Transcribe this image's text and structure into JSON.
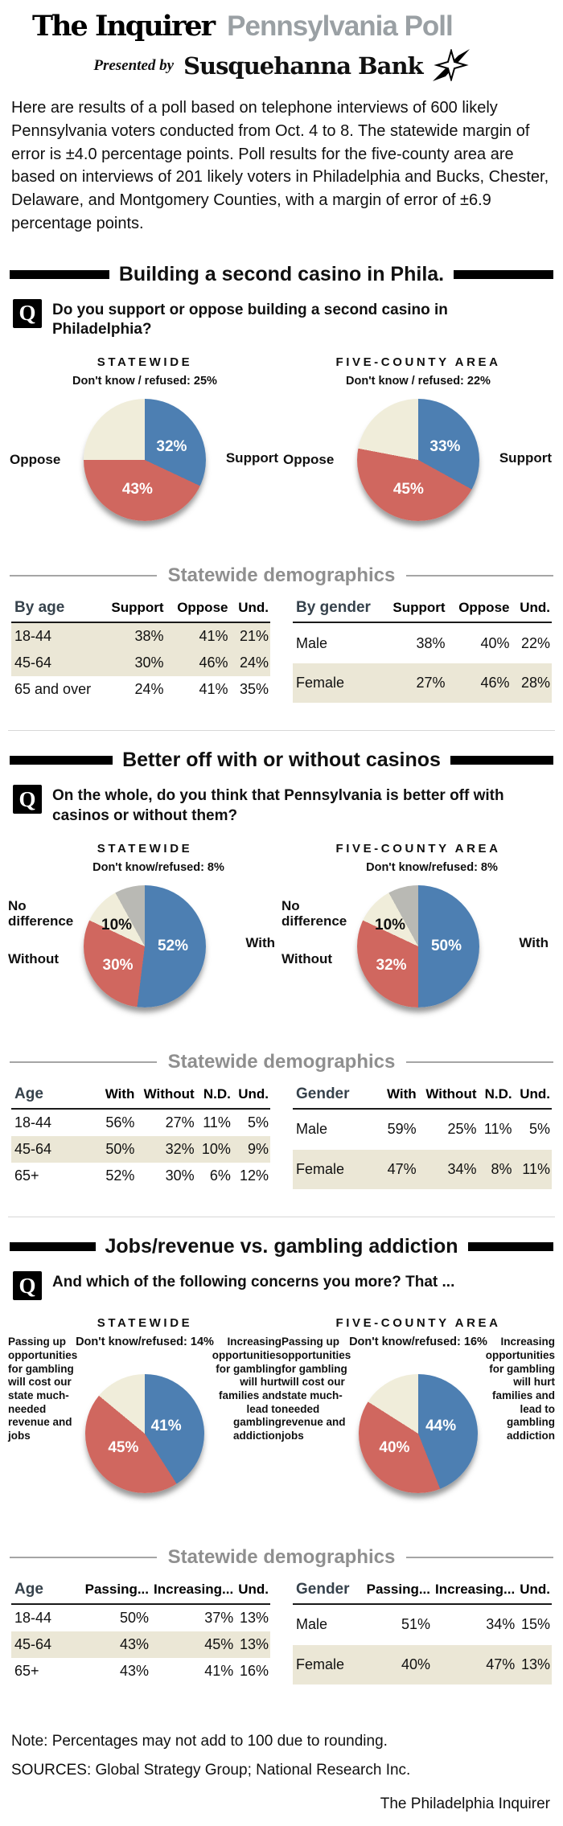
{
  "masthead": {
    "paper": "The Inquirer",
    "title": "Pennsylvania Poll",
    "presented_by": "Presented by",
    "sponsor": "Susquehanna Bank"
  },
  "intro": "Here are results of a poll based on telephone interviews of 600 likely Pennsylvania voters conducted from Oct. 4 to 8. The statewide margin of error is ±4.0 percentage points. Poll results for the five-county area are based on interviews of 201 likely voters in Philadelphia and Bucks, Chester, Delaware, and Montgomery Counties, with a margin of error of ±6.9 percentage points.",
  "sections": [
    {
      "title": "Building a second casino in Phila.",
      "q_badge": "Q",
      "question": "Do you support or oppose building a second casino in Philadelphia?",
      "demographics_title": "Statewide demographics"
    },
    {
      "title": "Better off with or without casinos",
      "q_badge": "Q",
      "question": "On the whole, do you think that Pennsylvania is better off with casinos or without them?",
      "demographics_title": "Statewide demographics"
    },
    {
      "title": "Jobs/revenue vs. gambling addiction",
      "q_badge": "Q",
      "question": "And which of the following concerns you more? That ...",
      "demographics_title": "Statewide demographics"
    }
  ],
  "footer": {
    "note": "Note: Percentages may not add to 100 due to rounding.",
    "sources": "SOURCES: Global Strategy Group; National Research Inc.",
    "credit": "The Philadelphia Inquirer"
  },
  "colors": {
    "support_blue": "#4d7fb2",
    "oppose_red": "#d0675f",
    "dont_know_cream": "#f0edda",
    "dont_know_gray": "#b9b9b4",
    "row_shade": "#ebe7d6",
    "demo_header_gray": "#8f8f8f"
  },
  "chart_data": [
    {
      "type": "pie",
      "section": "Building a second casino in Phila.",
      "region": "STATEWIDE",
      "dk_note": "Don't know / refused: 25%",
      "slices": [
        {
          "label": "Support",
          "value": 32,
          "display": "32%",
          "color": "#4d7fb2"
        },
        {
          "label": "Oppose",
          "value": 43,
          "display": "43%",
          "color": "#d0675f"
        },
        {
          "label": "Don't know / refused",
          "value": 25,
          "display": "25%",
          "color": "#f0edda"
        }
      ]
    },
    {
      "type": "pie",
      "section": "Building a second casino in Phila.",
      "region": "FIVE-COUNTY AREA",
      "dk_note": "Don't know / refused: 22%",
      "slices": [
        {
          "label": "Support",
          "value": 33,
          "display": "33%",
          "color": "#4d7fb2"
        },
        {
          "label": "Oppose",
          "value": 45,
          "display": "45%",
          "color": "#d0675f"
        },
        {
          "label": "Don't know / refused",
          "value": 22,
          "display": "22%",
          "color": "#f0edda"
        }
      ]
    },
    {
      "type": "pie",
      "section": "Better off with or without casinos",
      "region": "STATEWIDE",
      "dk_note": "Don't know/refused: 8%",
      "slices": [
        {
          "label": "With",
          "value": 52,
          "display": "52%",
          "color": "#4d7fb2"
        },
        {
          "label": "Without",
          "value": 30,
          "display": "30%",
          "color": "#d0675f"
        },
        {
          "label": "No difference",
          "value": 10,
          "display": "10%",
          "color": "#f0edda"
        },
        {
          "label": "Don't know/refused",
          "value": 8,
          "display": "8%",
          "color": "#b9b9b4"
        }
      ]
    },
    {
      "type": "pie",
      "section": "Better off with or without casinos",
      "region": "FIVE-COUNTY AREA",
      "dk_note": "Don't know/refused: 8%",
      "slices": [
        {
          "label": "With",
          "value": 50,
          "display": "50%",
          "color": "#4d7fb2"
        },
        {
          "label": "Without",
          "value": 32,
          "display": "32%",
          "color": "#d0675f"
        },
        {
          "label": "No difference",
          "value": 10,
          "display": "10%",
          "color": "#f0edda"
        },
        {
          "label": "Don't know/refused",
          "value": 8,
          "display": "8%",
          "color": "#b9b9b4"
        }
      ]
    },
    {
      "type": "pie",
      "section": "Jobs/revenue vs. gambling addiction",
      "region": "STATEWIDE",
      "dk_note": "Don't know/refused: 14%",
      "slices": [
        {
          "label": "Increasing opportunities for gambling will hurt families and lead to gambling addiction",
          "value": 41,
          "display": "41%",
          "color": "#4d7fb2"
        },
        {
          "label": "Passing up opportunities for gambling will cost our state much-needed revenue and jobs",
          "value": 45,
          "display": "45%",
          "color": "#d0675f"
        },
        {
          "label": "Don't know/refused",
          "value": 14,
          "display": "14%",
          "color": "#f0edda"
        }
      ]
    },
    {
      "type": "pie",
      "section": "Jobs/revenue vs. gambling addiction",
      "region": "FIVE-COUNTY AREA",
      "dk_note": "Don't know/refused: 16%",
      "slices": [
        {
          "label": "Increasing opportunities for gambling will hurt families and lead to gambling addiction",
          "value": 44,
          "display": "44%",
          "color": "#4d7fb2"
        },
        {
          "label": "Passing up opportunities for gambling will cost our state much-needed revenue and jobs",
          "value": 40,
          "display": "40%",
          "color": "#d0675f"
        },
        {
          "label": "Don't know/refused",
          "value": 16,
          "display": "16%",
          "color": "#f0edda"
        }
      ]
    },
    {
      "type": "table",
      "section": "Building a second casino in Phila.",
      "headers": [
        "By age",
        "Support",
        "Oppose",
        "Und."
      ],
      "rows": [
        [
          "18-44",
          "38%",
          "41%",
          "21%"
        ],
        [
          "45-64",
          "30%",
          "46%",
          "24%"
        ],
        [
          "65 and over",
          "24%",
          "41%",
          "35%"
        ]
      ]
    },
    {
      "type": "table",
      "section": "Building a second casino in Phila.",
      "headers": [
        "By gender",
        "Support",
        "Oppose",
        "Und."
      ],
      "rows": [
        [
          "Male",
          "38%",
          "40%",
          "22%"
        ],
        [
          "Female",
          "27%",
          "46%",
          "28%"
        ]
      ]
    },
    {
      "type": "table",
      "section": "Better off with or without casinos",
      "headers": [
        "Age",
        "With",
        "Without",
        "N.D.",
        "Und."
      ],
      "rows": [
        [
          "18-44",
          "56%",
          "27%",
          "11%",
          "5%"
        ],
        [
          "45-64",
          "50%",
          "32%",
          "10%",
          "9%"
        ],
        [
          "65+",
          "52%",
          "30%",
          "6%",
          "12%"
        ]
      ]
    },
    {
      "type": "table",
      "section": "Better off with or without casinos",
      "headers": [
        "Gender",
        "With",
        "Without",
        "N.D.",
        "Und."
      ],
      "rows": [
        [
          "Male",
          "59%",
          "25%",
          "11%",
          "5%"
        ],
        [
          "Female",
          "47%",
          "34%",
          "8%",
          "11%"
        ]
      ]
    },
    {
      "type": "table",
      "section": "Jobs/revenue vs. gambling addiction",
      "headers": [
        "Age",
        "Passing...",
        "Increasing...",
        "Und."
      ],
      "rows": [
        [
          "18-44",
          "50%",
          "37%",
          "13%"
        ],
        [
          "45-64",
          "43%",
          "45%",
          "13%"
        ],
        [
          "65+",
          "43%",
          "41%",
          "16%"
        ]
      ]
    },
    {
      "type": "table",
      "section": "Jobs/revenue vs. gambling addiction",
      "headers": [
        "Gender",
        "Passing...",
        "Increasing...",
        "Und."
      ],
      "rows": [
        [
          "Male",
          "51%",
          "34%",
          "15%"
        ],
        [
          "Female",
          "40%",
          "47%",
          "13%"
        ]
      ]
    }
  ]
}
